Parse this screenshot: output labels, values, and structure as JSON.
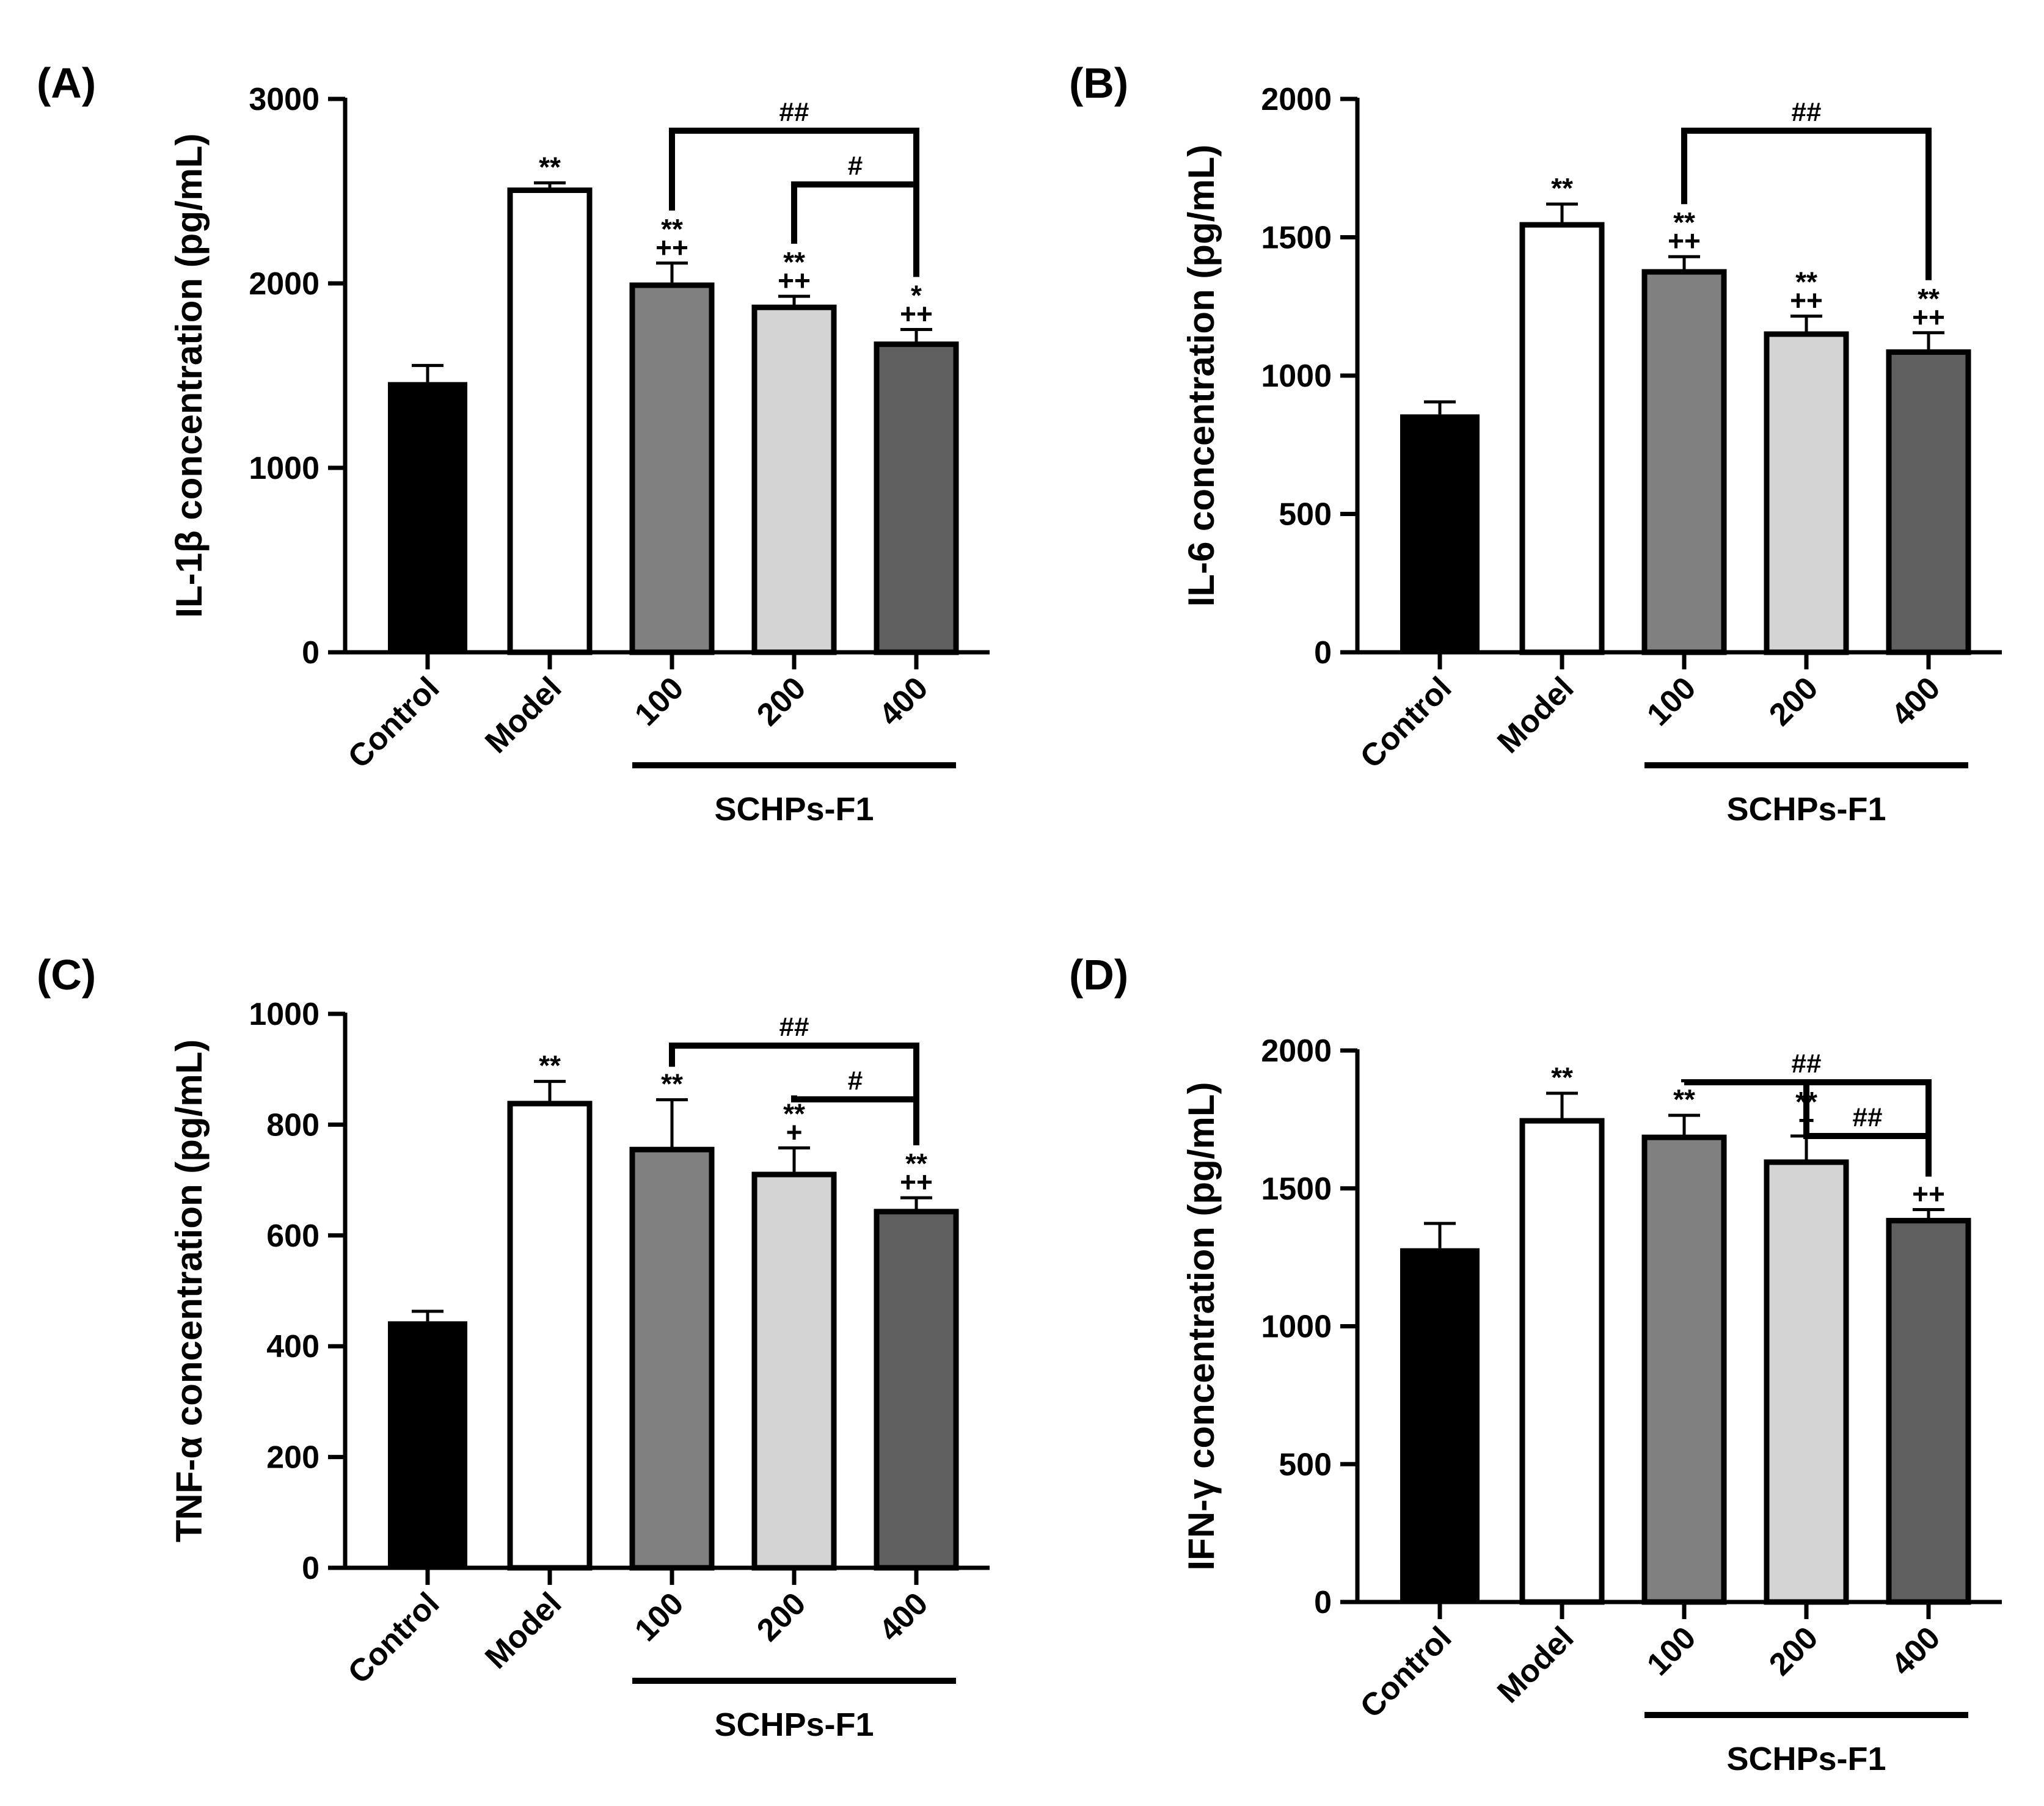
{
  "figure": {
    "panels": [
      {
        "label": "(A)",
        "chart_index": 0
      },
      {
        "label": "(B)",
        "chart_index": 1
      },
      {
        "label": "(C)",
        "chart_index": 2
      },
      {
        "label": "(D)",
        "chart_index": 3
      }
    ]
  },
  "colors": {
    "Control": "#000000",
    "Model": "#ffffff",
    "100": "#808080",
    "200": "#d4d4d4",
    "400": "#5f5f5f"
  },
  "chart_data": [
    {
      "type": "bar",
      "panel": "(A)",
      "title": "",
      "xlabel": "",
      "ylabel": "IL-1β concentration (pg/mL)",
      "ylim": [
        0,
        3000
      ],
      "yticks": [
        0,
        1000,
        2000,
        3000
      ],
      "categories": [
        "Control",
        "Model",
        "100",
        "200",
        "400"
      ],
      "group_label": "SCHPs-F1",
      "group_members": [
        "100",
        "200",
        "400"
      ],
      "values": [
        1465,
        2505,
        1990,
        1870,
        1670
      ],
      "errors": [
        90,
        40,
        120,
        60,
        80
      ],
      "annotations": [
        [],
        [
          "**"
        ],
        [
          "**",
          "++"
        ],
        [
          "**",
          "++"
        ],
        [
          "*",
          "++"
        ]
      ],
      "comparisons": [
        {
          "from": "100",
          "to": "400",
          "label": "##"
        },
        {
          "from": "200",
          "to": "400",
          "label": "#"
        }
      ],
      "grid": false,
      "legend": "none"
    },
    {
      "type": "bar",
      "panel": "(B)",
      "title": "",
      "xlabel": "",
      "ylabel": "IL-6 concentration (pg/mL)",
      "ylim": [
        0,
        2000
      ],
      "yticks": [
        0,
        500,
        1000,
        1500,
        2000
      ],
      "categories": [
        "Control",
        "Model",
        "100",
        "200",
        "400"
      ],
      "group_label": "SCHPs-F1",
      "group_members": [
        "100",
        "200",
        "400"
      ],
      "values": [
        860,
        1545,
        1375,
        1150,
        1085
      ],
      "errors": [
        45,
        75,
        55,
        65,
        70
      ],
      "annotations": [
        [],
        [
          "**"
        ],
        [
          "**",
          "++"
        ],
        [
          "**",
          "++"
        ],
        [
          "**",
          "++"
        ]
      ],
      "comparisons": [
        {
          "from": "100",
          "to": "400",
          "label": "##"
        }
      ],
      "grid": false,
      "legend": "none"
    },
    {
      "type": "bar",
      "panel": "(C)",
      "title": "",
      "xlabel": "",
      "ylabel": "TNF-α concentration (pg/mL)",
      "ylim": [
        0,
        1000
      ],
      "yticks": [
        0,
        200,
        400,
        600,
        800,
        1000
      ],
      "categories": [
        "Control",
        "Model",
        "100",
        "200",
        "400"
      ],
      "group_label": "SCHPs-F1",
      "group_members": [
        "100",
        "200",
        "400"
      ],
      "values": [
        445,
        838,
        755,
        710,
        643
      ],
      "errors": [
        18,
        40,
        90,
        48,
        25
      ],
      "annotations": [
        [],
        [
          "**"
        ],
        [
          "**"
        ],
        [
          "**",
          "+"
        ],
        [
          "**",
          "++"
        ]
      ],
      "comparisons": [
        {
          "from": "100",
          "to": "400",
          "label": "##"
        },
        {
          "from": "200",
          "to": "400",
          "label": "#"
        }
      ],
      "grid": false,
      "legend": "none"
    },
    {
      "type": "bar",
      "panel": "(D)",
      "title": "",
      "xlabel": "",
      "ylabel": "IFN-γ concentration (pg/mL)",
      "ylim": [
        0,
        2000
      ],
      "yticks": [
        0,
        500,
        1000,
        1500,
        2000
      ],
      "categories": [
        "Control",
        "Model",
        "100",
        "200",
        "400"
      ],
      "group_label": "SCHPs-F1",
      "group_members": [
        "100",
        "200",
        "400"
      ],
      "values": [
        1283,
        1745,
        1685,
        1595,
        1383
      ],
      "errors": [
        90,
        100,
        80,
        95,
        40
      ],
      "annotations": [
        [],
        [
          "**"
        ],
        [
          "**"
        ],
        [
          "**",
          "+"
        ],
        [
          "++"
        ]
      ],
      "comparisons": [
        {
          "from": "100",
          "to": "400",
          "label": "##"
        },
        {
          "from": "200",
          "to": "400",
          "label": "##"
        }
      ],
      "grid": false,
      "legend": "none"
    }
  ]
}
